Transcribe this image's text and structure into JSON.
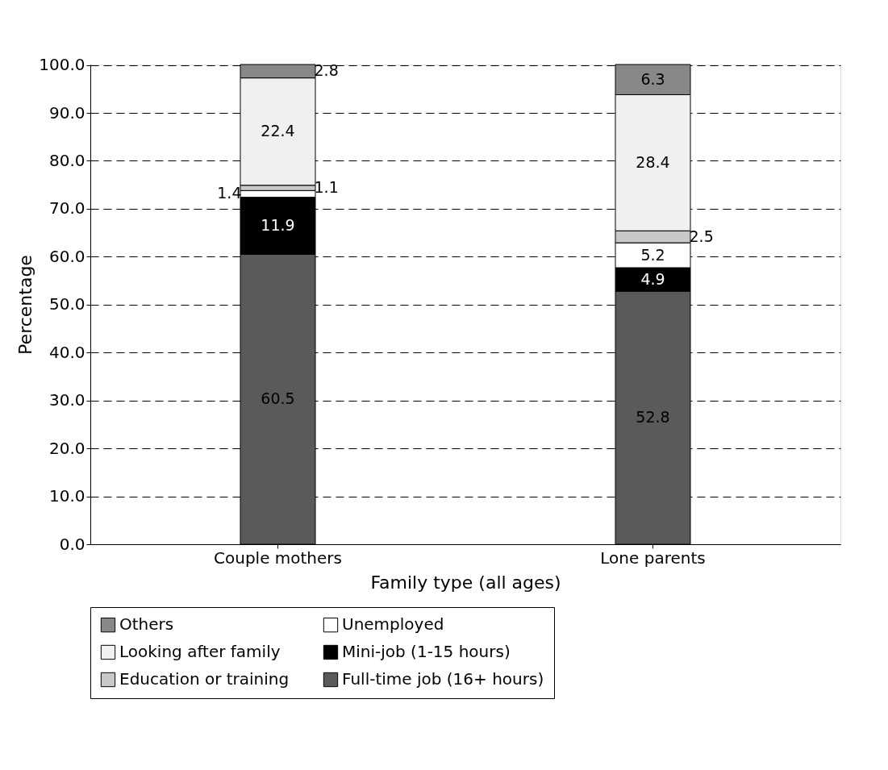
{
  "chart_data": {
    "type": "bar",
    "stacked": true,
    "xlabel": "Family type (all ages)",
    "ylabel": "Percentage",
    "categories": [
      "Couple mothers",
      "Lone parents"
    ],
    "series": [
      {
        "name": "Full-time job (16+ hours)",
        "color": "#5a5a5a",
        "values": [
          60.5,
          52.8
        ]
      },
      {
        "name": "Mini-job (1-15 hours)",
        "color": "#000000",
        "values": [
          11.9,
          4.9
        ]
      },
      {
        "name": "Unemployed",
        "color": "#ffffff",
        "values": [
          1.4,
          5.2
        ]
      },
      {
        "name": "Education or training",
        "color": "#c8c8c8",
        "values": [
          1.1,
          2.5
        ]
      },
      {
        "name": "Looking after family",
        "color": "#f0f0f0",
        "values": [
          22.4,
          28.4
        ]
      },
      {
        "name": "Others",
        "color": "#888888",
        "values": [
          2.8,
          6.3
        ]
      }
    ],
    "ylim": [
      0,
      100.1
    ],
    "yticks": [
      {
        "value": 0,
        "label": "0.0"
      },
      {
        "value": 10,
        "label": "10.0"
      },
      {
        "value": 20,
        "label": "20.0"
      },
      {
        "value": 30,
        "label": "30.0"
      },
      {
        "value": 40,
        "label": "40.0"
      },
      {
        "value": 50,
        "label": "50.0"
      },
      {
        "value": 60,
        "label": "60.0"
      },
      {
        "value": 70,
        "label": "70.0"
      },
      {
        "value": 80,
        "label": "80.0"
      },
      {
        "value": 90,
        "label": "90.0"
      },
      {
        "value": 100,
        "label": "100.0"
      }
    ],
    "grid": "y",
    "legend": "bottom",
    "data_labels": true
  }
}
